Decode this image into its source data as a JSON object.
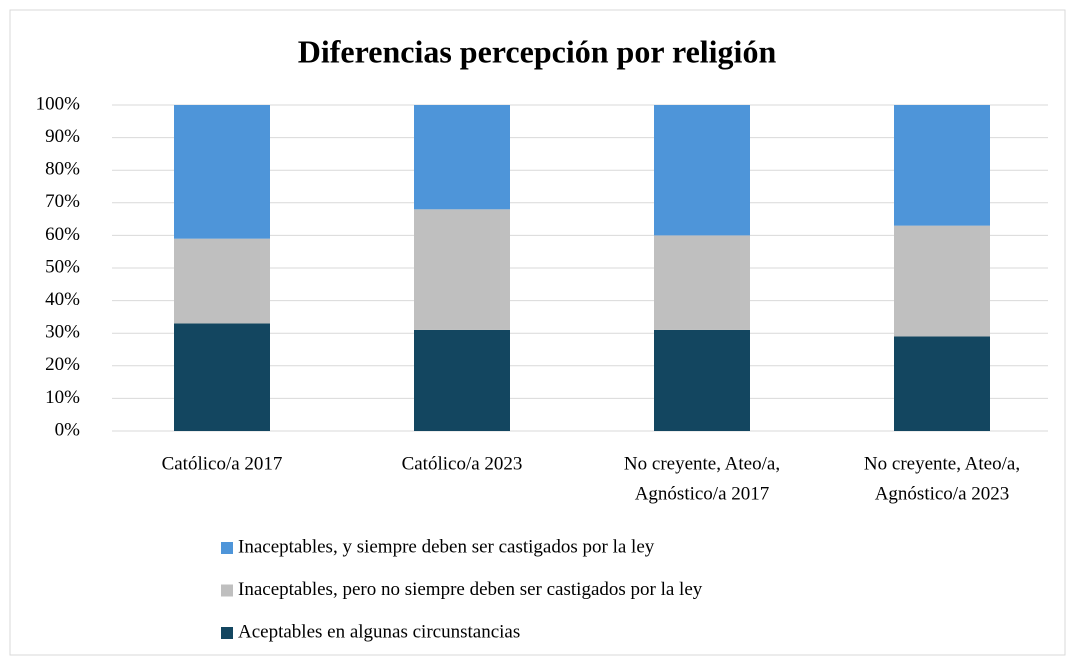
{
  "chart_data": {
    "type": "stacked_bar",
    "title": "Diferencias percepción por religión",
    "categories": [
      [
        "Católico/a   2017"
      ],
      [
        "Católico/a   2023"
      ],
      [
        "No creyente, Ateo/a,",
        "Agnóstico/a  2017"
      ],
      [
        "No creyente, Ateo/a,",
        "Agnóstico/a  2023"
      ]
    ],
    "series": [
      {
        "name": "Aceptables en algunas circunstancias",
        "color": "#134660",
        "values": [
          33,
          31,
          31,
          29
        ]
      },
      {
        "name": "Inaceptables, pero no siempre deben ser castigados por la ley",
        "color": "#bfbfbf",
        "values": [
          26,
          37,
          29,
          34
        ]
      },
      {
        "name": "Inaceptables, y siempre deben ser castigados por la ley",
        "color": "#4e95d9",
        "values": [
          41,
          32,
          40,
          37
        ]
      }
    ],
    "ylim": [
      0,
      100
    ],
    "yticks": [
      {
        "value": 0,
        "label": "0%"
      },
      {
        "value": 10,
        "label": "10%"
      },
      {
        "value": 20,
        "label": "20%"
      },
      {
        "value": 30,
        "label": "30%"
      },
      {
        "value": 40,
        "label": "40%"
      },
      {
        "value": 50,
        "label": "50%"
      },
      {
        "value": 60,
        "label": "60%"
      },
      {
        "value": 70,
        "label": "70%"
      },
      {
        "value": 80,
        "label": "80%"
      },
      {
        "value": 90,
        "label": "90%"
      },
      {
        "value": 100,
        "label": "100%"
      }
    ],
    "grid": true,
    "legend": "bottom"
  }
}
